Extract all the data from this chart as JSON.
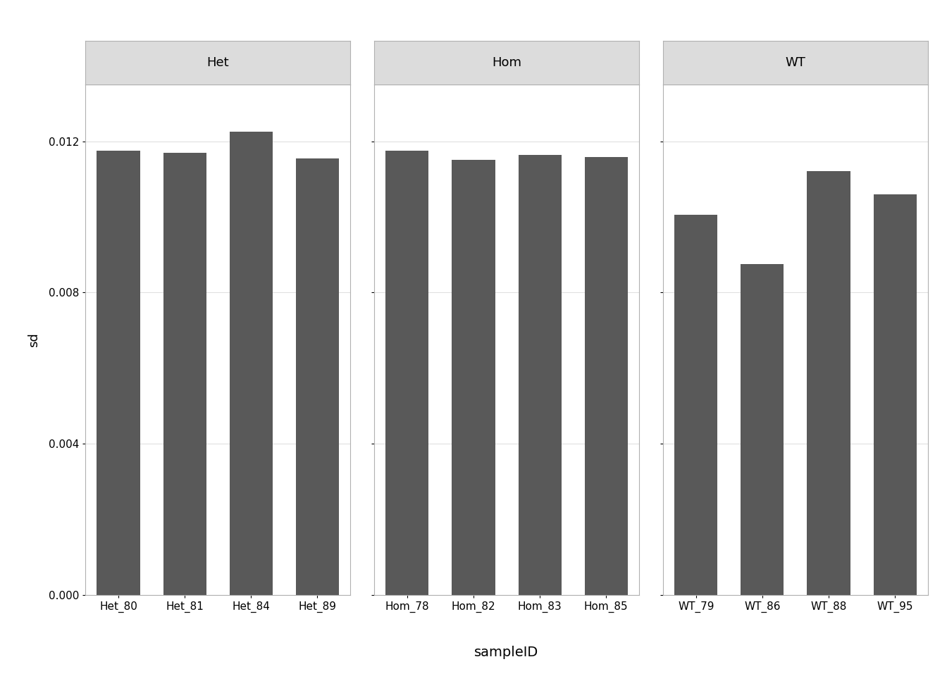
{
  "facets": [
    {
      "label": "Het",
      "samples": [
        "Het_80",
        "Het_81",
        "Het_84",
        "Het_89"
      ],
      "values": [
        0.01175,
        0.0117,
        0.01225,
        0.01155
      ]
    },
    {
      "label": "Hom",
      "samples": [
        "Hom_78",
        "Hom_82",
        "Hom_83",
        "Hom_85"
      ],
      "values": [
        0.01175,
        0.0115,
        0.01163,
        0.01158
      ]
    },
    {
      "label": "WT",
      "samples": [
        "WT_79",
        "WT_86",
        "WT_88",
        "WT_95"
      ],
      "values": [
        0.01005,
        0.00875,
        0.0112,
        0.0106
      ]
    }
  ],
  "bar_color": "#595959",
  "background_color": "#ffffff",
  "panel_bg_color": "#ffffff",
  "strip_bg_color": "#dcdcdc",
  "strip_border_color": "#b0b0b0",
  "panel_border_color": "#b0b0b0",
  "grid_color": "#e0e0e0",
  "ylabel": "sd",
  "xlabel": "sampleID",
  "ylim": [
    0,
    0.0135
  ],
  "yticks": [
    0.0,
    0.004,
    0.008,
    0.012
  ],
  "axis_fontsize": 13,
  "tick_fontsize": 11,
  "strip_fontsize": 13,
  "xlabel_fontsize": 14
}
